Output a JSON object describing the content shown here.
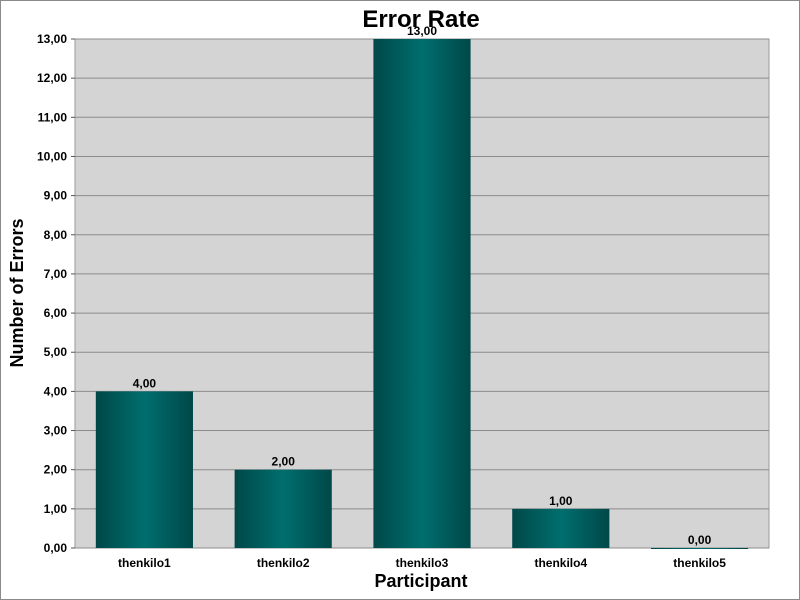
{
  "chart_data": {
    "type": "bar",
    "title": "Error Rate",
    "xlabel": "Participant",
    "ylabel": "Number of Errors",
    "categories": [
      "thenkilo1",
      "thenkilo2",
      "thenkilo3",
      "thenkilo4",
      "thenkilo5"
    ],
    "values": [
      4,
      2,
      13,
      1,
      0
    ],
    "data_labels": [
      "4,00",
      "2,00",
      "13,00",
      "1,00",
      "0,00"
    ],
    "ylim": [
      0,
      13
    ],
    "yticks": [
      0,
      1,
      2,
      3,
      4,
      5,
      6,
      7,
      8,
      9,
      10,
      11,
      12,
      13
    ],
    "ytick_labels": [
      "0,00",
      "1,00",
      "2,00",
      "3,00",
      "4,00",
      "5,00",
      "6,00",
      "7,00",
      "8,00",
      "9,00",
      "10,00",
      "11,00",
      "12,00",
      "13,00"
    ],
    "grid": true,
    "legend": "none",
    "colors": {
      "plot_background": "#d4d4d4",
      "bar_dark": "#004848",
      "bar_light": "#006e6e",
      "gridline": "#8c8c8c"
    }
  }
}
